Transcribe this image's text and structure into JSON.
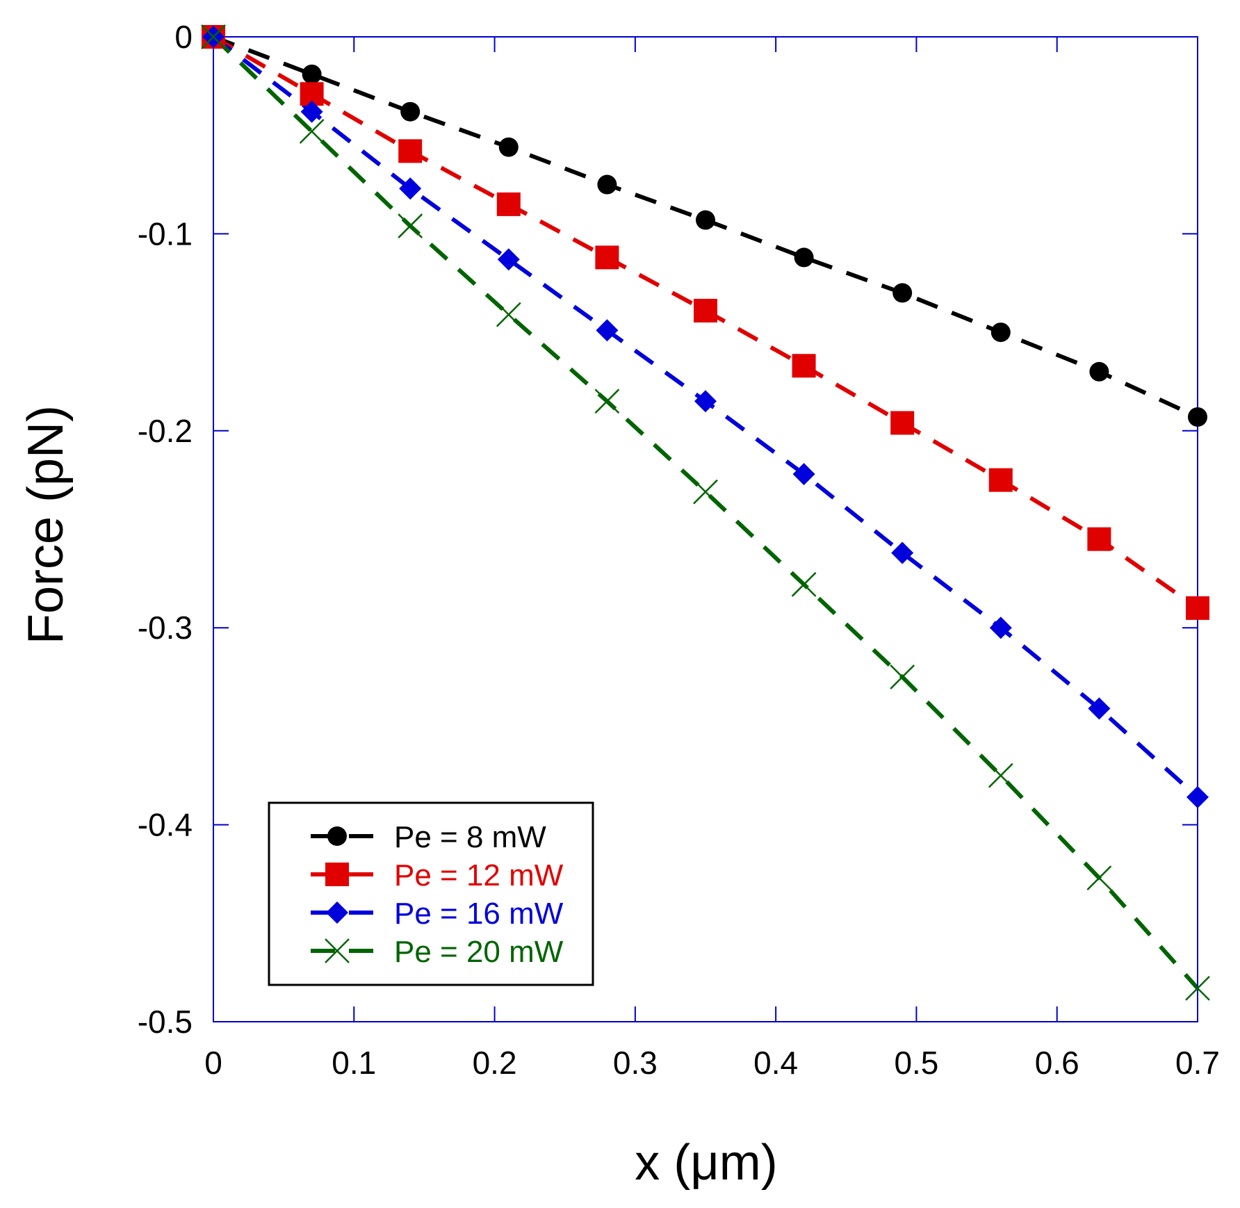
{
  "chart_data": {
    "type": "line",
    "title": "",
    "xlabel": "x (μm)",
    "ylabel": "Force (pN)",
    "xlim": [
      0,
      0.7
    ],
    "ylim": [
      -0.5,
      0
    ],
    "xticks": [
      0,
      0.1,
      0.2,
      0.3,
      0.4,
      0.5,
      0.6,
      0.7
    ],
    "xtick_labels": [
      "0",
      "0.1",
      "0.2",
      "0.3",
      "0.4",
      "0.5",
      "0.6",
      "0.7"
    ],
    "yticks": [
      0,
      -0.1,
      -0.2,
      -0.3,
      -0.4,
      -0.5
    ],
    "ytick_labels": [
      "0",
      "-0.1",
      "-0.2",
      "-0.3",
      "-0.4",
      "-0.5"
    ],
    "grid": false,
    "legend_position": "bottom-left",
    "frame_color": "#0000cc",
    "x": [
      0,
      0.07,
      0.14,
      0.21,
      0.28,
      0.35,
      0.42,
      0.49,
      0.56,
      0.63,
      0.7
    ],
    "series": [
      {
        "name": "Pe = 8 mW",
        "color": "#000000",
        "marker": "circle",
        "values": [
          0,
          -0.019,
          -0.038,
          -0.056,
          -0.075,
          -0.093,
          -0.112,
          -0.13,
          -0.15,
          -0.17,
          -0.193
        ]
      },
      {
        "name": "Pe = 12 mW",
        "color": "#e00000",
        "marker": "square",
        "values": [
          0,
          -0.029,
          -0.058,
          -0.085,
          -0.112,
          -0.139,
          -0.167,
          -0.196,
          -0.225,
          -0.255,
          -0.29
        ]
      },
      {
        "name": "Pe = 16 mW",
        "color": "#0000dd",
        "marker": "diamond",
        "values": [
          0,
          -0.038,
          -0.077,
          -0.113,
          -0.149,
          -0.185,
          -0.222,
          -0.262,
          -0.3,
          -0.341,
          -0.386
        ]
      },
      {
        "name": "Pe = 20 mW",
        "color": "#006400",
        "marker": "x",
        "values": [
          0,
          -0.048,
          -0.096,
          -0.141,
          -0.185,
          -0.231,
          -0.278,
          -0.325,
          -0.375,
          -0.427,
          -0.483
        ]
      }
    ]
  }
}
